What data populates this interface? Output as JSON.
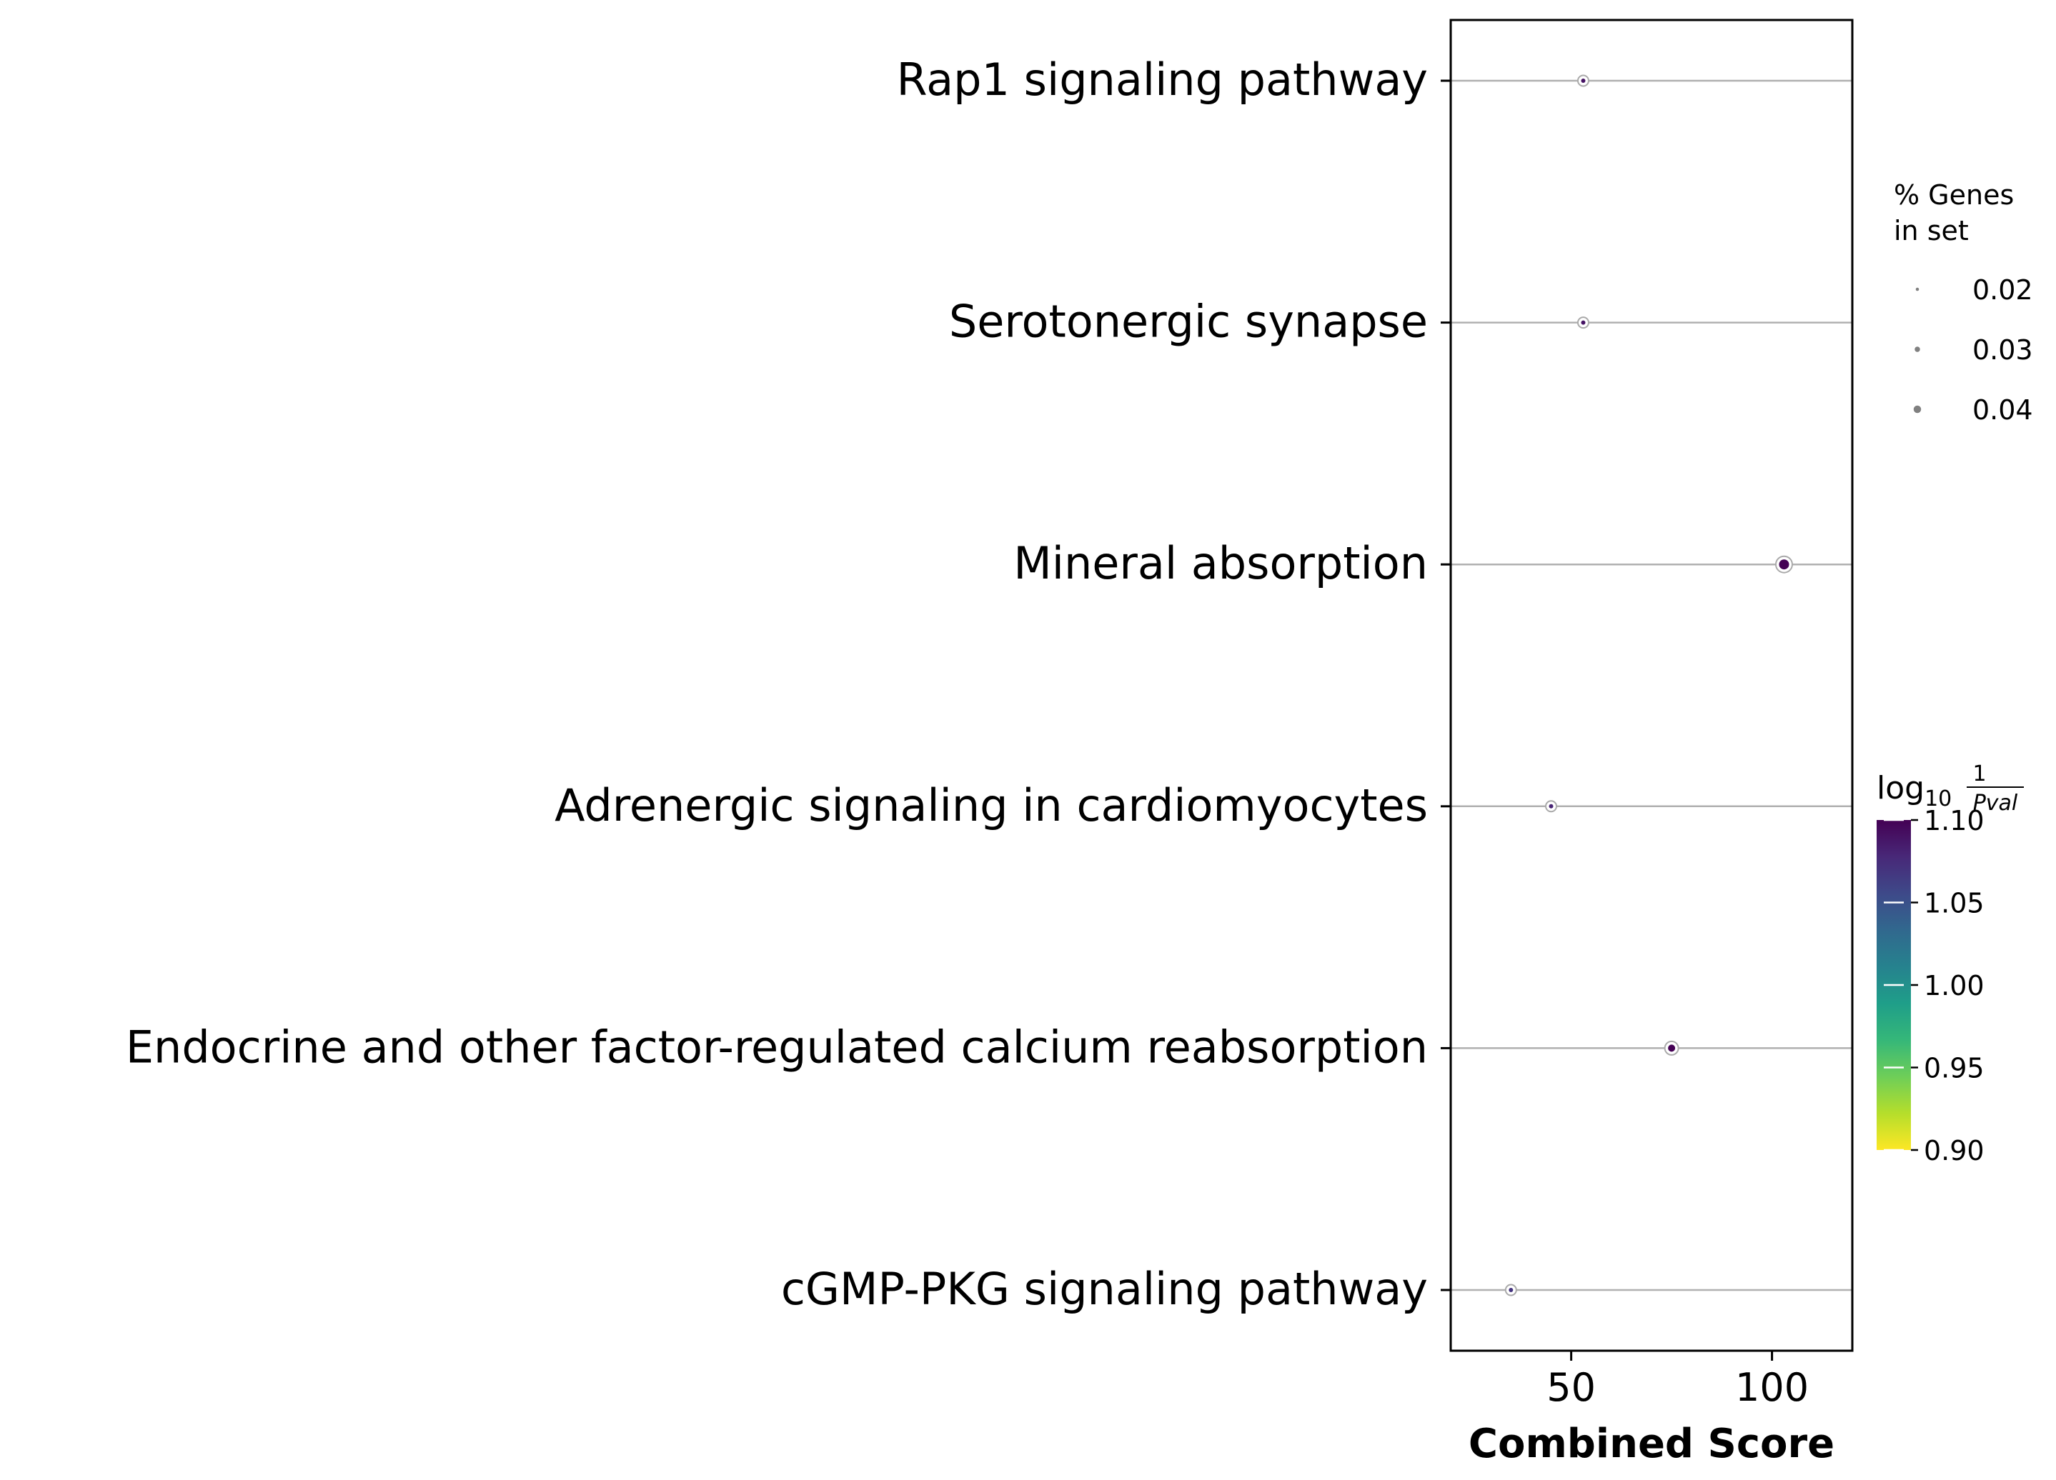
{
  "chart_data": {
    "type": "scatter",
    "xlabel": "Combined Score",
    "ylabel": "",
    "xlim": [
      20,
      120
    ],
    "xticks": [
      50,
      100
    ],
    "grid": "horizontal",
    "categories": [
      "Rap1 signaling pathway",
      "Serotonergic synapse",
      "Mineral absorption",
      "Adrenergic signaling in cardiomyocytes",
      "Endocrine and other factor-regulated calcium reabsorption",
      "cGMP-PKG signaling pathway"
    ],
    "points": [
      {
        "category": "Rap1 signaling pathway",
        "x": 53,
        "pct_genes": 0.02,
        "log10_1_pval": 1.09
      },
      {
        "category": "Serotonergic synapse",
        "x": 53,
        "pct_genes": 0.02,
        "log10_1_pval": 1.09
      },
      {
        "category": "Mineral absorption",
        "x": 103,
        "pct_genes": 0.04,
        "log10_1_pval": 1.1
      },
      {
        "category": "Adrenergic signaling in cardiomyocytes",
        "x": 45,
        "pct_genes": 0.02,
        "log10_1_pval": 1.08
      },
      {
        "category": "Endocrine and other factor-regulated calcium reabsorption",
        "x": 75,
        "pct_genes": 0.03,
        "log10_1_pval": 1.1
      },
      {
        "category": "cGMP-PKG signaling pathway",
        "x": 35,
        "pct_genes": 0.02,
        "log10_1_pval": 1.07
      }
    ],
    "size_legend": {
      "title_lines": [
        "% Genes",
        "in set"
      ],
      "values": [
        0.02,
        0.03,
        0.04
      ],
      "labels": [
        "0.02",
        "0.03",
        "0.04"
      ],
      "placement": "right"
    },
    "colorbar": {
      "label_base": "log",
      "label_sub": "10",
      "label_num": "1",
      "label_den": "Pval",
      "range": [
        0.9,
        1.1
      ],
      "ticks": [
        1.1,
        1.05,
        1.0,
        0.95,
        0.9
      ],
      "tick_labels": [
        "1.10",
        "1.05",
        "1.00",
        "0.95",
        "0.90"
      ],
      "colormap": "viridis_r",
      "placement": "right"
    },
    "colors": {
      "viridis": [
        "#440154",
        "#482878",
        "#3e4989",
        "#31688e",
        "#26828e",
        "#1f9e89",
        "#35b779",
        "#6ece58",
        "#b5de2b",
        "#fde725"
      ],
      "grid_line": "#b0b0b0",
      "axis": "#000000",
      "marker_edge": "#aaaaaa",
      "legend_marker": "#808080"
    }
  }
}
